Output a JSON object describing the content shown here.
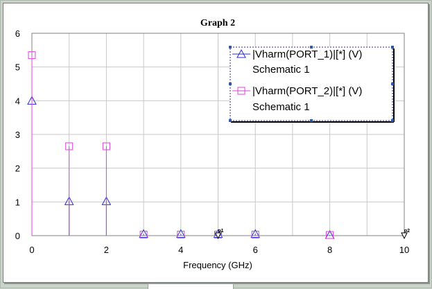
{
  "chart_data": {
    "type": "stem",
    "title": "Graph 2",
    "xlabel": "Frequency (GHz)",
    "ylabel": "",
    "xlim": [
      0,
      10
    ],
    "ylim": [
      0,
      6
    ],
    "xticks": [
      0,
      2,
      4,
      6,
      8,
      10
    ],
    "yticks": [
      0,
      1,
      2,
      3,
      4,
      5,
      6
    ],
    "grid": true,
    "legend_position": "top-right",
    "series": [
      {
        "name": "|Vharm(PORT_1)|[*] (V)",
        "subname": "Schematic 1",
        "color": "#2a2ad0",
        "marker": "triangle",
        "x": [
          0,
          1,
          2,
          3,
          4,
          5,
          6,
          8
        ],
        "y": [
          4.0,
          1.02,
          1.02,
          0.05,
          0.05,
          0.05,
          0.05,
          0.02
        ]
      },
      {
        "name": "|Vharm(PORT_2)|[*] (V)",
        "subname": "Schematic 1",
        "color": "#e040e0",
        "marker": "square",
        "x": [
          0,
          1,
          2,
          3,
          4,
          5,
          6,
          8
        ],
        "y": [
          5.35,
          2.65,
          2.65,
          0.03,
          0.03,
          0.03,
          0.03,
          0.02
        ]
      }
    ],
    "markers": [
      {
        "label": "p1",
        "x": 5
      },
      {
        "label": "p2",
        "x": 10
      }
    ]
  }
}
